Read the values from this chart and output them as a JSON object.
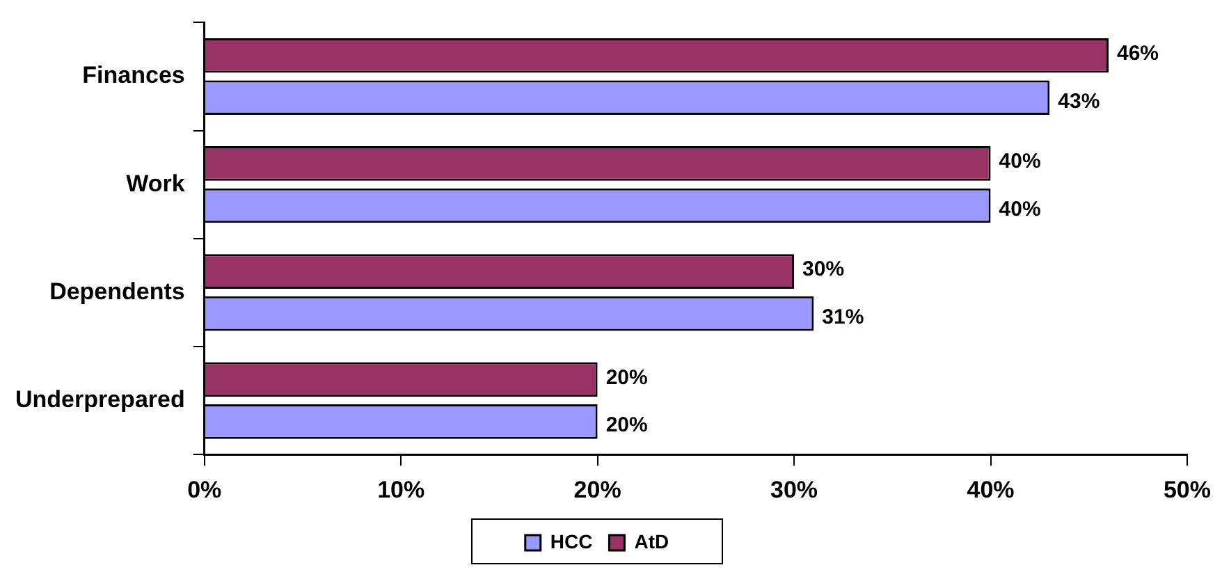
{
  "chart_data": {
    "type": "bar",
    "orientation": "horizontal",
    "categories": [
      "Finances",
      "Work",
      "Dependents",
      "Underprepared"
    ],
    "series": [
      {
        "name": "AtD",
        "color": "#993366",
        "values": [
          46,
          40,
          30,
          20
        ],
        "value_labels": [
          "46%",
          "40%",
          "30%",
          "20%"
        ]
      },
      {
        "name": "HCC",
        "color": "#9999ff",
        "values": [
          43,
          40,
          31,
          20
        ],
        "value_labels": [
          "43%",
          "40%",
          "31%",
          "20%"
        ]
      }
    ],
    "xlim": [
      0,
      50
    ],
    "xticks": [
      {
        "value": 0,
        "label": "0%"
      },
      {
        "value": 10,
        "label": "10%"
      },
      {
        "value": 20,
        "label": "20%"
      },
      {
        "value": 30,
        "label": "30%"
      },
      {
        "value": 40,
        "label": "40%"
      },
      {
        "value": 50,
        "label": "50%"
      }
    ],
    "grid": false,
    "legend": "bottom"
  }
}
